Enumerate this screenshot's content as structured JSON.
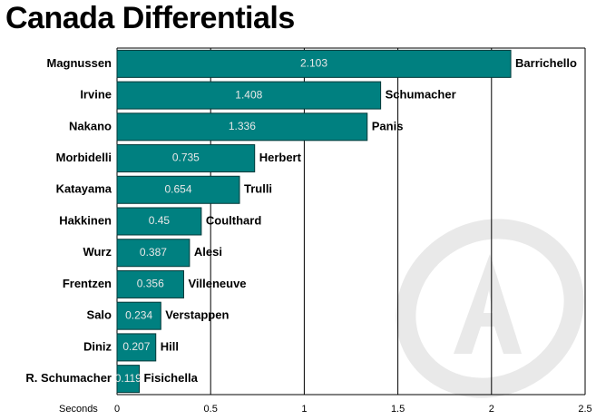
{
  "chart_data": {
    "type": "hbar",
    "title": "Canada Differentials",
    "categories": [
      "Magnussen",
      "Irvine",
      "Nakano",
      "Morbidelli",
      "Katayama",
      "Hakkinen",
      "Wurz",
      "Frentzen",
      "Salo",
      "Diniz",
      "R. Schumacher"
    ],
    "comparison_categories": [
      "Barrichello",
      "Schumacher",
      "Panis",
      "Herbert",
      "Trulli",
      "Coulthard",
      "Alesi",
      "Villeneuve",
      "Verstappen",
      "Hill",
      "Fisichella"
    ],
    "values": [
      2.103,
      1.408,
      1.336,
      0.735,
      0.654,
      0.45,
      0.387,
      0.356,
      0.234,
      0.207,
      0.119
    ],
    "color": "#008080",
    "x_label": "Seconds",
    "xlim": [
      0,
      2.5
    ],
    "xticks": [
      0,
      0.5,
      1,
      1.5,
      2,
      2.5
    ],
    "grid": true
  }
}
